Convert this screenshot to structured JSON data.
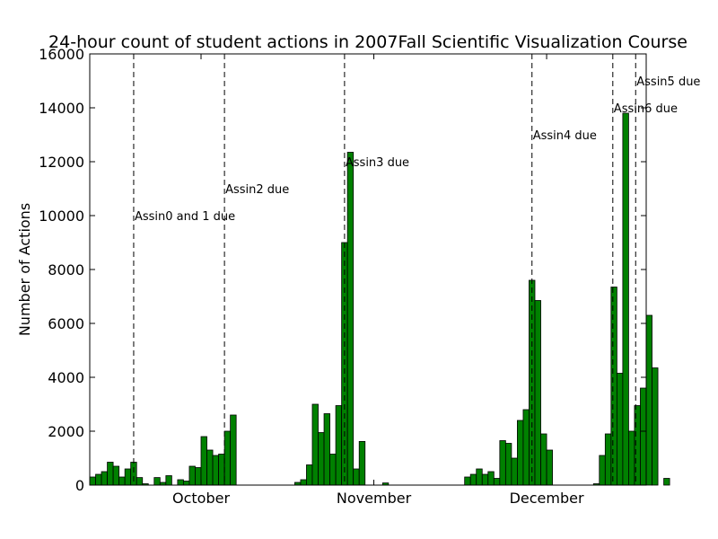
{
  "chart_data": {
    "type": "bar",
    "title": "24-hour count of student actions in 2007Fall Scientific Visualization Course",
    "ylabel": "Number of Actions",
    "xlabel": "",
    "ylim": [
      0,
      16000
    ],
    "yticks": [
      0,
      2000,
      4000,
      6000,
      8000,
      10000,
      12000,
      14000,
      16000
    ],
    "x_tick_labels": [
      {
        "label": "October",
        "day": 19
      },
      {
        "label": "November",
        "day": 48.5
      },
      {
        "label": "December",
        "day": 78
      }
    ],
    "bar_color": "#008000",
    "day_range": [
      0,
      95
    ],
    "values": [
      300,
      400,
      500,
      850,
      700,
      300,
      600,
      850,
      280,
      50,
      0,
      280,
      100,
      350,
      0,
      200,
      150,
      700,
      650,
      1800,
      1300,
      1100,
      1150,
      2000,
      2600,
      0,
      0,
      0,
      0,
      0,
      0,
      0,
      0,
      0,
      0,
      100,
      200,
      750,
      3000,
      1950,
      2650,
      1150,
      2950,
      9000,
      12350,
      600,
      1620,
      0,
      0,
      0,
      80,
      0,
      0,
      0,
      0,
      0,
      0,
      0,
      0,
      0,
      0,
      0,
      0,
      0,
      300,
      400,
      600,
      400,
      500,
      250,
      1650,
      1550,
      1000,
      2400,
      2800,
      7600,
      6850,
      1900,
      1300,
      0,
      0,
      0,
      0,
      0,
      0,
      0,
      50,
      1100,
      1900,
      7350,
      4150,
      13800,
      2000,
      2950,
      3600,
      6300,
      4350,
      0,
      250
    ],
    "annotations": [
      {
        "label": "Assin0 and 1 due",
        "day": 7.5,
        "y": 10000
      },
      {
        "label": "Assin2 due",
        "day": 23,
        "y": 11000
      },
      {
        "label": "Assin3 due",
        "day": 43.5,
        "y": 12000
      },
      {
        "label": "Assin4 due",
        "day": 75.5,
        "y": 13000
      },
      {
        "label": "Assin6 due",
        "day": 89.3,
        "y": 14000
      },
      {
        "label": "Assin5 due",
        "day": 93.2,
        "y": 15000
      }
    ]
  }
}
